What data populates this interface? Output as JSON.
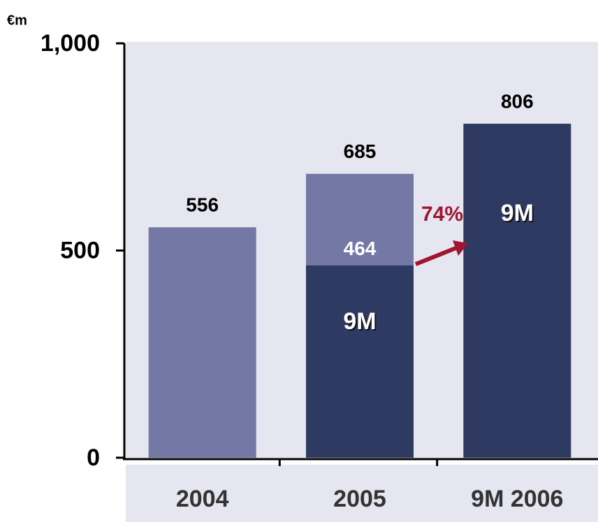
{
  "chart_data": {
    "type": "bar",
    "y_unit": "€m",
    "categories": [
      "2004",
      "2005",
      "9M 2006"
    ],
    "series": [
      {
        "color": "#7378a5",
        "values": [
          556,
          685,
          null
        ]
      },
      {
        "name": "9M",
        "color": "#2e3a62",
        "values": [
          null,
          464,
          806
        ]
      }
    ],
    "ylim": [
      0,
      1000
    ],
    "yticks": [
      0,
      {
        "value": 500,
        "label": "500"
      },
      {
        "value": 1000,
        "label": "1,000"
      }
    ],
    "annotation": "74%"
  }
}
